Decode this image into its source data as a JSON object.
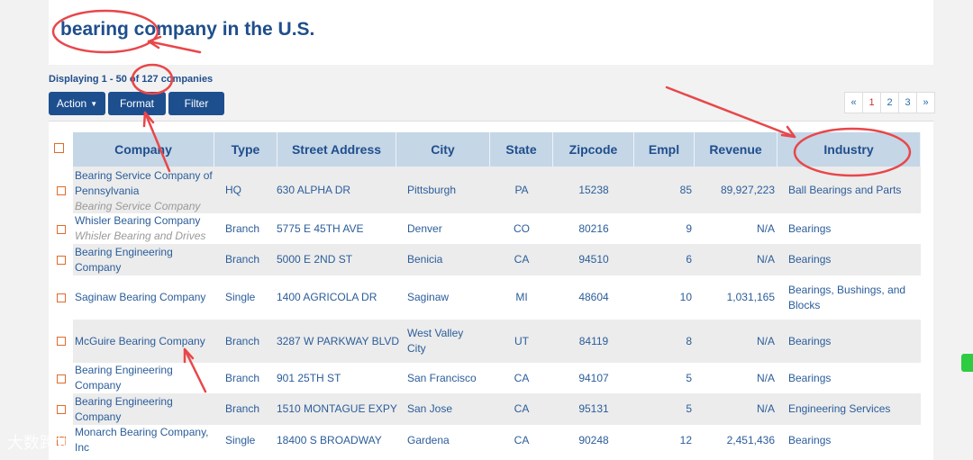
{
  "title": "bearing company in the U.S.",
  "display": "Displaying 1 - 50 of 127 companies",
  "buttons": {
    "action": "Action",
    "format": "Format",
    "filter": "Filter"
  },
  "pager": {
    "prev": "«",
    "pages": [
      "1",
      "2",
      "3"
    ],
    "next": "»",
    "active": "1"
  },
  "columns": [
    "Company",
    "Type",
    "Street Address",
    "City",
    "State",
    "Zipcode",
    "Empl",
    "Revenue",
    "Industry"
  ],
  "rows": [
    {
      "company": "Bearing Service Company of Pennsylvania",
      "alias": "Bearing Service Company",
      "type": "HQ",
      "address": "630 ALPHA DR",
      "city": "Pittsburgh",
      "state": "PA",
      "zip": "15238",
      "empl": "85",
      "revenue": "89,927,223",
      "industry": "Ball Bearings and Parts"
    },
    {
      "company": "Whisler Bearing Company",
      "alias": "Whisler Bearing and Drives",
      "type": "Branch",
      "address": "5775 E 45TH AVE",
      "city": "Denver",
      "state": "CO",
      "zip": "80216",
      "empl": "9",
      "revenue": "N/A",
      "industry": "Bearings"
    },
    {
      "company": "Bearing Engineering Company",
      "alias": "",
      "type": "Branch",
      "address": "5000 E 2ND ST",
      "city": "Benicia",
      "state": "CA",
      "zip": "94510",
      "empl": "6",
      "revenue": "N/A",
      "industry": "Bearings"
    },
    {
      "company": "Saginaw Bearing Company",
      "alias": "",
      "type": "Single",
      "address": "1400 AGRICOLA DR",
      "city": "Saginaw",
      "state": "MI",
      "zip": "48604",
      "empl": "10",
      "revenue": "1,031,165",
      "industry": "Bearings, Bushings, and Blocks"
    },
    {
      "company": "McGuire Bearing Company",
      "alias": "",
      "type": "Branch",
      "address": "3287 W PARKWAY BLVD",
      "city": "West Valley City",
      "state": "UT",
      "zip": "84119",
      "empl": "8",
      "revenue": "N/A",
      "industry": "Bearings"
    },
    {
      "company": "Bearing Engineering Company",
      "alias": "",
      "type": "Branch",
      "address": "901 25TH ST",
      "city": "San Francisco",
      "state": "CA",
      "zip": "94107",
      "empl": "5",
      "revenue": "N/A",
      "industry": "Bearings"
    },
    {
      "company": "Bearing Engineering Company",
      "alias": "",
      "type": "Branch",
      "address": "1510 MONTAGUE EXPY",
      "city": "San Jose",
      "state": "CA",
      "zip": "95131",
      "empl": "5",
      "revenue": "N/A",
      "industry": "Engineering Services"
    },
    {
      "company": "Monarch Bearing Company, Inc",
      "alias": "",
      "type": "Single",
      "address": "18400 S BROADWAY",
      "city": "Gardena",
      "state": "CA",
      "zip": "90248",
      "empl": "12",
      "revenue": "2,451,436",
      "industry": "Bearings"
    }
  ],
  "watermark": "大数跨境"
}
